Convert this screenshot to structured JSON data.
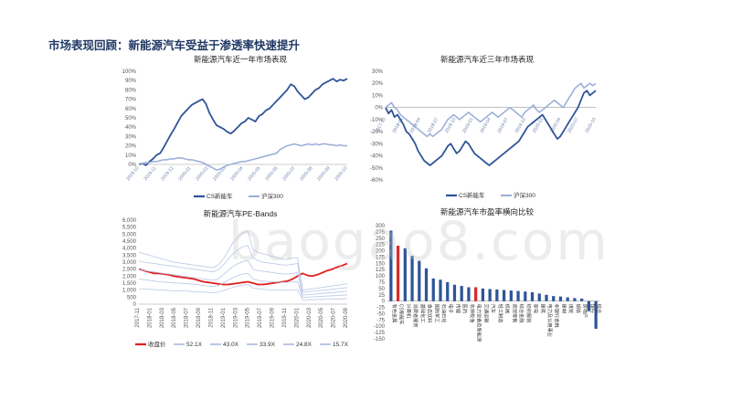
{
  "page": {
    "title": "市场表现回顾：新能源汽车受益于渗透率快速提升"
  },
  "watermark": "baogao8.com",
  "chart_data": [
    {
      "id": "one-year",
      "type": "line",
      "title": "新能源汽车近一年市场表现",
      "ylim": [
        0,
        100
      ],
      "yticks": [
        "0%",
        "10%",
        "20%",
        "30%",
        "40%",
        "50%",
        "60%",
        "70%",
        "80%",
        "90%",
        "100%"
      ],
      "x_ticks": [
        "2019-10",
        "2019-11",
        "2019-12",
        "2020-01",
        "2020-02",
        "2020-03",
        "2020-04",
        "2020-05",
        "2020-06",
        "2020-07",
        "2020-08",
        "2020-09",
        "2020-10"
      ],
      "series": [
        {
          "name": "CS新能车",
          "color": "#2f5597",
          "values": [
            0,
            1,
            -1,
            3,
            6,
            10,
            12,
            18,
            25,
            32,
            38,
            45,
            52,
            56,
            60,
            64,
            66,
            68,
            70,
            65,
            55,
            48,
            42,
            40,
            38,
            35,
            33,
            36,
            40,
            44,
            46,
            50,
            48,
            46,
            52,
            54,
            58,
            60,
            64,
            68,
            72,
            76,
            80,
            86,
            84,
            78,
            74,
            70,
            72,
            76,
            80,
            82,
            86,
            88,
            90,
            92,
            89,
            91,
            90,
            92
          ]
        },
        {
          "name": "沪深300",
          "color": "#9db0d8",
          "values": [
            1,
            1,
            2,
            2,
            3,
            3,
            4,
            5,
            5,
            6,
            6,
            7,
            7,
            6,
            5,
            5,
            4,
            3,
            2,
            0,
            -2,
            -4,
            -6,
            -5,
            -3,
            -1,
            0,
            1,
            2,
            3,
            3,
            4,
            5,
            6,
            7,
            8,
            9,
            10,
            11,
            12,
            16,
            18,
            20,
            21,
            22,
            21,
            20,
            21,
            22,
            21,
            22,
            21,
            22,
            22,
            21,
            21,
            20,
            21,
            20,
            20
          ]
        }
      ]
    },
    {
      "id": "three-year",
      "type": "line",
      "title": "新能源汽车近三年市场表现",
      "ylim": [
        -60,
        30
      ],
      "yticks": [
        "-60%",
        "-50%",
        "-40%",
        "-30%",
        "-20%",
        "-10%",
        "0%",
        "10%",
        "20%",
        "30%"
      ],
      "x_ticks": [
        "2017-10",
        "2018-01",
        "2018-04",
        "2018-07",
        "2018-10",
        "2019-01",
        "2019-04",
        "2019-07",
        "2019-10",
        "2020-01",
        "2020-04",
        "2020-07",
        "2020-10"
      ],
      "series": [
        {
          "name": "CS新能车",
          "color": "#2f5597",
          "values": [
            0,
            -5,
            -2,
            -8,
            -6,
            -10,
            -14,
            -20,
            -22,
            -26,
            -30,
            -36,
            -40,
            -44,
            -46,
            -48,
            -46,
            -44,
            -42,
            -40,
            -36,
            -32,
            -30,
            -34,
            -38,
            -36,
            -32,
            -28,
            -30,
            -34,
            -38,
            -40,
            -42,
            -44,
            -46,
            -48,
            -46,
            -44,
            -42,
            -40,
            -38,
            -36,
            -34,
            -32,
            -30,
            -28,
            -24,
            -20,
            -16,
            -14,
            -12,
            -10,
            -8,
            -6,
            -10,
            -14,
            -18,
            -22,
            -26,
            -24,
            -20,
            -16,
            -12,
            -8,
            -4,
            0,
            6,
            12,
            14,
            10,
            12,
            14
          ]
        },
        {
          "name": "沪深300",
          "color": "#9db0d8",
          "values": [
            0,
            2,
            4,
            0,
            -2,
            -6,
            -8,
            -10,
            -12,
            -14,
            -16,
            -18,
            -20,
            -22,
            -24,
            -22,
            -24,
            -22,
            -20,
            -18,
            -14,
            -10,
            -8,
            -6,
            -8,
            -10,
            -8,
            -6,
            -4,
            -6,
            -8,
            -10,
            -12,
            -10,
            -8,
            -6,
            -4,
            -6,
            -8,
            -6,
            -4,
            -2,
            0,
            -2,
            -4,
            -6,
            -8,
            -4,
            -2,
            0,
            2,
            -2,
            -4,
            -2,
            0,
            2,
            4,
            6,
            4,
            2,
            0,
            4,
            8,
            12,
            16,
            18,
            20,
            16,
            18,
            20,
            18,
            20
          ]
        }
      ]
    },
    {
      "id": "pe-bands",
      "type": "line",
      "title": "新能源汽车PE-Bands",
      "ylim": [
        0,
        6000
      ],
      "yticks": [
        "0",
        "500",
        "1,000",
        "1,500",
        "2,000",
        "2,500",
        "3,000",
        "3,500",
        "4,000",
        "4,500",
        "5,000",
        "5,500",
        "6,000"
      ],
      "x_ticks": [
        "2017-11",
        "2018-01",
        "2018-03",
        "2018-05",
        "2018-07",
        "2018-09",
        "2018-11",
        "2019-01",
        "2019-03",
        "2019-05",
        "2019-07",
        "2019-09",
        "2019-11",
        "2020-01",
        "2020-03",
        "2020-05",
        "2020-07",
        "2020-09"
      ],
      "series": [
        {
          "name": "收盘价",
          "color": "#e02020",
          "values": [
            2500,
            2400,
            2300,
            2200,
            2200,
            2150,
            2100,
            2000,
            1950,
            1900,
            1850,
            1800,
            1700,
            1600,
            1550,
            1500,
            1450,
            1400,
            1400,
            1450,
            1500,
            1550,
            1600,
            1500,
            1400,
            1400,
            1450,
            1500,
            1550,
            1600,
            1650,
            1800,
            2000,
            2200,
            2050,
            2000,
            2100,
            2250,
            2400,
            2500,
            2650,
            2750,
            2900
          ]
        },
        {
          "name": "52.1X",
          "color": "#b8c7e6",
          "values": [
            3700,
            3600,
            3500,
            3400,
            3300,
            3200,
            3100,
            3000,
            2950,
            2900,
            2850,
            2800,
            2750,
            2700,
            2650,
            2600,
            2800,
            3200,
            3800,
            4400,
            4800,
            5100,
            5200,
            3900,
            3700,
            3600,
            3500,
            3400,
            3300,
            3200,
            3200,
            3300,
            3300,
            1000,
            1050,
            1100,
            1150,
            1200,
            1250,
            1300,
            1350,
            1400,
            1450
          ]
        },
        {
          "name": "43.0X",
          "color": "#b8c7e6",
          "values": [
            3100,
            3000,
            2950,
            2900,
            2850,
            2800,
            2750,
            2700,
            2650,
            2600,
            2550,
            2500,
            2450,
            2400,
            2350,
            2300,
            2450,
            2800,
            3200,
            3600,
            3900,
            4100,
            4200,
            3300,
            3100,
            3000,
            2950,
            2900,
            2850,
            2800,
            2800,
            2850,
            2900,
            850,
            880,
            920,
            950,
            990,
            1020,
            1060,
            1100,
            1140,
            1180
          ]
        },
        {
          "name": "33.9X",
          "color": "#b8c7e6",
          "values": [
            2450,
            2400,
            2350,
            2300,
            2250,
            2200,
            2150,
            2100,
            2050,
            2000,
            1950,
            1900,
            1850,
            1800,
            1750,
            1700,
            1800,
            2100,
            2400,
            2700,
            2900,
            3050,
            3100,
            2500,
            2400,
            2350,
            2300,
            2250,
            2200,
            2150,
            2150,
            2200,
            2250,
            650,
            680,
            710,
            740,
            770,
            800,
            830,
            860,
            890,
            920
          ]
        },
        {
          "name": "24.8X",
          "color": "#b8c7e6",
          "values": [
            1800,
            1750,
            1700,
            1650,
            1600,
            1580,
            1550,
            1520,
            1500,
            1480,
            1450,
            1420,
            1380,
            1340,
            1300,
            1260,
            1320,
            1500,
            1700,
            1900,
            2050,
            2150,
            2200,
            1800,
            1700,
            1650,
            1620,
            1600,
            1580,
            1560,
            1560,
            1600,
            1620,
            480,
            500,
            520,
            540,
            560,
            580,
            600,
            620,
            640,
            660
          ]
        },
        {
          "name": "15.7X",
          "color": "#b8c7e6",
          "values": [
            1100,
            1080,
            1060,
            1040,
            1020,
            1000,
            980,
            960,
            950,
            940,
            920,
            900,
            880,
            860,
            840,
            820,
            860,
            960,
            1080,
            1200,
            1300,
            1360,
            1400,
            1150,
            1100,
            1060,
            1040,
            1020,
            1010,
            1000,
            1000,
            1020,
            1040,
            300,
            310,
            320,
            330,
            340,
            350,
            360,
            370,
            380,
            400
          ]
        }
      ]
    },
    {
      "id": "pe-compare",
      "type": "bar",
      "title": "新能源汽车市盈率横向比较",
      "ylim": [
        -150,
        300
      ],
      "yticks": [
        "-150",
        "-125",
        "-100",
        "-75",
        "-50",
        "-25",
        "0",
        "25",
        "50",
        "75",
        "100",
        "125",
        "150",
        "175",
        "200",
        "225",
        "250",
        "275",
        "300"
      ],
      "categories": [
        "有色金属",
        "CS新能车",
        "计算机",
        "消费者服务",
        "基础化工",
        "食品饮料",
        "国防军工",
        "石油石化",
        "电子",
        "传媒",
        "医药",
        "农林牧渔",
        "电力设备及新能源",
        "交通运输",
        "汽车",
        "轻工制造",
        "机械",
        "商贸零售",
        "综合金融",
        "纺织服装",
        "家电",
        "建筑",
        "电力及公用事业",
        "非银行金融",
        "建材",
        "煤炭",
        "钢铁",
        "房地产",
        "银行",
        "综合"
      ],
      "values": [
        280,
        220,
        210,
        180,
        160,
        130,
        90,
        85,
        75,
        65,
        60,
        55,
        55,
        50,
        48,
        46,
        44,
        42,
        40,
        38,
        35,
        30,
        25,
        20,
        18,
        15,
        12,
        10,
        -40,
        -110
      ],
      "highlight_color": "#d92c2c",
      "bar_color": "#2f5597",
      "highlight_index": [
        1,
        12
      ]
    }
  ]
}
